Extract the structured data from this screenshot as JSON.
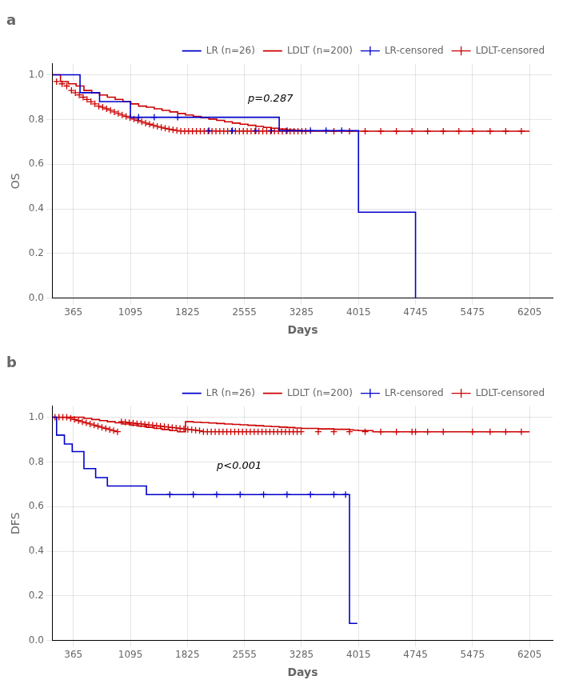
{
  "chart_data": [
    {
      "type": "line",
      "title": "a",
      "xlabel": "Days",
      "ylabel": "OS",
      "annotations": [
        {
          "text": "p=0.287",
          "x": 2600,
          "y": 0.88
        }
      ],
      "xlim": [
        100,
        6500
      ],
      "xticks": [
        365,
        1095,
        1825,
        2555,
        3285,
        4015,
        4745,
        5475,
        6205
      ],
      "ylim": [
        0.0,
        1.05
      ],
      "yticks": [
        {
          "value": 0.0,
          "label": "0.0"
        },
        0.2,
        0.4,
        0.6,
        0.8,
        {
          "value": 1.0,
          "label": "1.0"
        }
      ],
      "grid": true,
      "legend": "upper right",
      "series": [
        {
          "name": "LR (n=26)",
          "type": "step",
          "color": "#0000cc",
          "x": [
            100,
            200,
            450,
            600,
            700,
            900,
            1095,
            1825,
            3000,
            4015,
            4015,
            4300,
            4745,
            4745
          ],
          "values": [
            1.0,
            1.0,
            0.92,
            0.92,
            0.88,
            0.88,
            0.81,
            0.81,
            0.75,
            0.75,
            0.385,
            0.385,
            0.385,
            0.0
          ]
        },
        {
          "name": "LDLT (n=200)",
          "type": "step",
          "color": "#cc0000",
          "x": [
            100,
            200,
            300,
            400,
            500,
            600,
            700,
            800,
            900,
            1000,
            1100,
            1200,
            1300,
            1400,
            1500,
            1600,
            1700,
            1800,
            1900,
            2000,
            2100,
            2200,
            2300,
            2400,
            2500,
            2600,
            2700,
            2800,
            2900,
            3000,
            3100,
            3200,
            3285,
            3500,
            3700,
            3900,
            4015,
            4300,
            4500,
            4745,
            5100,
            5475,
            5900,
            6205
          ],
          "values": [
            1.0,
            0.97,
            0.96,
            0.95,
            0.93,
            0.92,
            0.91,
            0.9,
            0.89,
            0.88,
            0.87,
            0.86,
            0.855,
            0.848,
            0.841,
            0.834,
            0.827,
            0.82,
            0.814,
            0.808,
            0.802,
            0.796,
            0.79,
            0.784,
            0.779,
            0.774,
            0.769,
            0.765,
            0.761,
            0.757,
            0.754,
            0.751,
            0.748,
            0.748,
            0.748,
            0.748,
            0.748,
            0.748,
            0.748,
            0.748,
            0.748,
            0.748,
            0.748,
            0.748
          ]
        },
        {
          "name": "LR-censored",
          "type": "scatter",
          "marker": "plus",
          "color": "#0000cc",
          "x": [
            1200,
            1400,
            1700,
            2100,
            2400,
            2700,
            2900,
            3100,
            3400,
            3600,
            3800
          ],
          "values": [
            0.81,
            0.81,
            0.81,
            0.75,
            0.75,
            0.75,
            0.75,
            0.75,
            0.75,
            0.75,
            0.75
          ]
        },
        {
          "name": "LDLT-censored",
          "type": "scatter",
          "marker": "plus",
          "color": "#cc0000",
          "x": [
            150,
            220,
            280,
            340,
            390,
            440,
            490,
            540,
            590,
            640,
            690,
            740,
            790,
            840,
            890,
            940,
            990,
            1040,
            1090,
            1140,
            1190,
            1240,
            1290,
            1340,
            1390,
            1440,
            1490,
            1540,
            1590,
            1640,
            1690,
            1740,
            1790,
            1840,
            1890,
            1940,
            1990,
            2040,
            2090,
            2140,
            2190,
            2240,
            2290,
            2340,
            2390,
            2440,
            2490,
            2540,
            2590,
            2640,
            2690,
            2740,
            2790,
            2840,
            2890,
            2940,
            2990,
            3040,
            3090,
            3140,
            3190,
            3240,
            3290,
            3340,
            3700,
            3900,
            4100,
            4300,
            4500,
            4700,
            4900,
            5100,
            5300,
            5475,
            5700,
            5900,
            6100
          ],
          "values": [
            0.97,
            0.96,
            0.95,
            0.93,
            0.92,
            0.91,
            0.9,
            0.89,
            0.88,
            0.87,
            0.86,
            0.855,
            0.848,
            0.841,
            0.834,
            0.827,
            0.82,
            0.814,
            0.808,
            0.802,
            0.796,
            0.79,
            0.784,
            0.779,
            0.774,
            0.769,
            0.765,
            0.761,
            0.757,
            0.754,
            0.751,
            0.748,
            0.748,
            0.748,
            0.748,
            0.748,
            0.748,
            0.748,
            0.748,
            0.748,
            0.748,
            0.748,
            0.748,
            0.748,
            0.748,
            0.748,
            0.748,
            0.748,
            0.748,
            0.748,
            0.748,
            0.748,
            0.748,
            0.748,
            0.748,
            0.748,
            0.748,
            0.748,
            0.748,
            0.748,
            0.748,
            0.748,
            0.748,
            0.748,
            0.748,
            0.748,
            0.748,
            0.748,
            0.748,
            0.748,
            0.748,
            0.748,
            0.748,
            0.748,
            0.748,
            0.748,
            0.748
          ]
        }
      ]
    },
    {
      "type": "line",
      "title": "b",
      "xlabel": "Days",
      "ylabel": "DFS",
      "annotations": [
        {
          "text": "p<0.001",
          "x": 2200,
          "y": 0.77
        }
      ],
      "xlim": [
        100,
        6500
      ],
      "xticks": [
        365,
        1095,
        1825,
        2555,
        3285,
        4015,
        4745,
        5475,
        6205
      ],
      "ylim": [
        0.0,
        1.05
      ],
      "yticks": [
        {
          "value": 0.0,
          "label": "0.0"
        },
        0.2,
        0.4,
        0.6,
        0.8,
        {
          "value": 1.0,
          "label": "1.0"
        }
      ],
      "grid": true,
      "legend": "upper right",
      "series": [
        {
          "name": "LR (n=26)",
          "type": "step",
          "color": "#0000cc",
          "x": [
            100,
            150,
            250,
            350,
            500,
            650,
            800,
            1095,
            1300,
            1825,
            3900,
            3900,
            4000
          ],
          "values": [
            1.0,
            0.92,
            0.88,
            0.846,
            0.77,
            0.73,
            0.692,
            0.692,
            0.654,
            0.654,
            0.654,
            0.077,
            0.077
          ]
        },
        {
          "name": "LDLT (n=200)",
          "type": "step",
          "color": "#cc0000",
          "x": [
            100,
            200,
            300,
            400,
            500,
            600,
            700,
            800,
            900,
            1000,
            1100,
            1200,
            1300,
            1400,
            1500,
            1600,
            1700,
            1800,
            1900,
            2000,
            2100,
            2200,
            2300,
            2400,
            2500,
            2600,
            2700,
            2800,
            2900,
            3000,
            3100,
            3200,
            3285,
            3500,
            3700,
            3900,
            3950,
            4015,
            4200,
            4400,
            4745,
            5100,
            5475,
            5900,
            6205
          ],
          "values": [
            1.0,
            1.0,
            1.0,
            1.0,
            0.995,
            0.99,
            0.985,
            0.98,
            0.975,
            0.97,
            0.965,
            0.96,
            0.955,
            0.95,
            0.945,
            0.94,
            0.935,
            0.98,
            0.978,
            0.976,
            0.974,
            0.972,
            0.97,
            0.968,
            0.966,
            0.964,
            0.962,
            0.96,
            0.958,
            0.956,
            0.954,
            0.952,
            0.95,
            0.948,
            0.946,
            0.944,
            0.942,
            0.94,
            0.935,
            0.935,
            0.935,
            0.935,
            0.935,
            0.935,
            0.935
          ]
        },
        {
          "name": "LR-censored",
          "type": "scatter",
          "marker": "plus",
          "color": "#0000cc",
          "x": [
            1600,
            1900,
            2200,
            2500,
            2800,
            3100,
            3400,
            3700,
            3850
          ],
          "values": [
            0.654,
            0.654,
            0.654,
            0.654,
            0.654,
            0.654,
            0.654,
            0.654,
            0.654
          ]
        },
        {
          "name": "LDLT-censored",
          "type": "scatter",
          "marker": "plus",
          "color": "#cc0000",
          "x": [
            130,
            180,
            230,
            280,
            330,
            380,
            430,
            480,
            530,
            580,
            630,
            680,
            730,
            780,
            830,
            880,
            930,
            980,
            1030,
            1080,
            1130,
            1180,
            1230,
            1280,
            1330,
            1380,
            1430,
            1480,
            1530,
            1580,
            1630,
            1680,
            1730,
            1780,
            1830,
            1880,
            1930,
            1980,
            2030,
            2080,
            2130,
            2180,
            2230,
            2280,
            2330,
            2380,
            2430,
            2480,
            2530,
            2580,
            2630,
            2680,
            2730,
            2780,
            2830,
            2880,
            2930,
            2980,
            3030,
            3080,
            3130,
            3180,
            3230,
            3280,
            3500,
            3700,
            3900,
            4100,
            4300,
            4500,
            4700,
            4745,
            4900,
            5100,
            5475,
            5700,
            5900,
            6100
          ],
          "values": [
            1.0,
            1.0,
            1.0,
            1.0,
            0.995,
            0.99,
            0.985,
            0.98,
            0.975,
            0.97,
            0.965,
            0.96,
            0.955,
            0.95,
            0.945,
            0.94,
            0.935,
            0.98,
            0.978,
            0.976,
            0.974,
            0.972,
            0.97,
            0.968,
            0.966,
            0.964,
            0.962,
            0.96,
            0.958,
            0.956,
            0.954,
            0.952,
            0.95,
            0.948,
            0.946,
            0.944,
            0.942,
            0.94,
            0.935,
            0.935,
            0.935,
            0.935,
            0.935,
            0.935,
            0.935,
            0.935,
            0.935,
            0.935,
            0.935,
            0.935,
            0.935,
            0.935,
            0.935,
            0.935,
            0.935,
            0.935,
            0.935,
            0.935,
            0.935,
            0.935,
            0.935,
            0.935,
            0.935,
            0.935,
            0.935,
            0.935,
            0.935,
            0.935,
            0.935,
            0.935,
            0.935,
            0.935,
            0.935,
            0.935,
            0.935,
            0.935,
            0.935,
            0.935
          ]
        }
      ]
    }
  ]
}
